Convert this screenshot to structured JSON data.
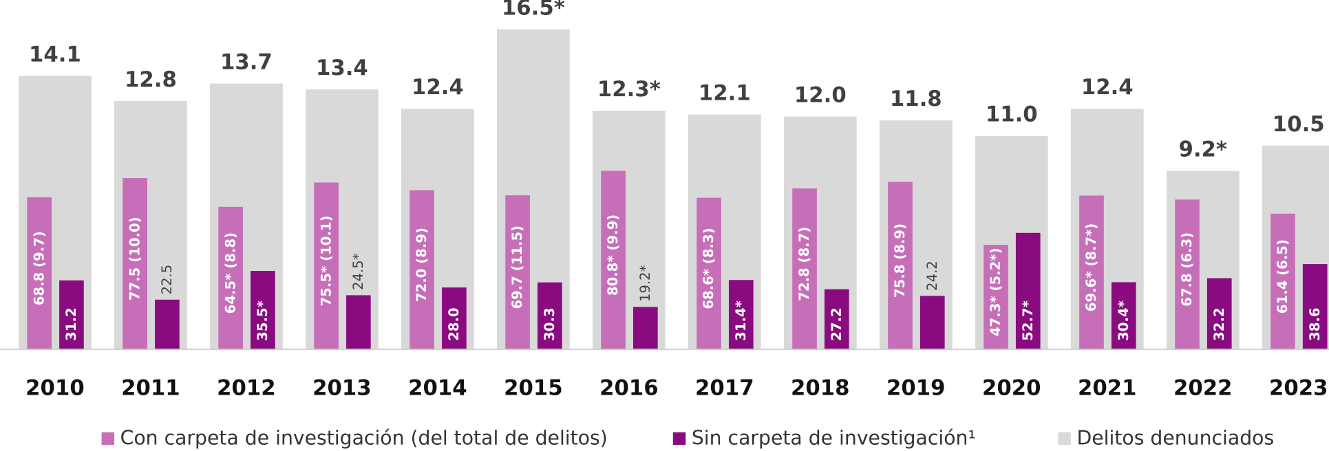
{
  "chart_data": {
    "type": "bar",
    "categories": [
      "2010",
      "2011",
      "2012",
      "2013",
      "2014",
      "2015",
      "2016",
      "2017",
      "2018",
      "2019",
      "2020",
      "2021",
      "2022",
      "2023"
    ],
    "ylim": [
      0,
      18
    ],
    "y2lim": [
      0,
      158
    ],
    "series": [
      {
        "name": "Delitos denunciados",
        "color": "#d9d9d9",
        "values": [
          14.1,
          12.8,
          13.7,
          13.4,
          12.4,
          16.5,
          12.3,
          12.1,
          12.0,
          11.8,
          11.0,
          12.4,
          9.2,
          10.5
        ],
        "value_labels": [
          "14.1",
          "12.8",
          "13.7",
          "13.4",
          "12.4",
          "16.5*",
          "12.3*",
          "12.1",
          "12.0",
          "11.8",
          "11.0",
          "12.4",
          "9.2*",
          "10.5"
        ]
      },
      {
        "name": "Con carpeta de investigación (del total de delitos)",
        "color": "#c66fb8",
        "axis": "y2",
        "values": [
          68.8,
          77.5,
          64.5,
          75.5,
          72.0,
          69.7,
          80.8,
          68.6,
          72.8,
          75.8,
          47.3,
          69.6,
          67.8,
          61.4
        ],
        "value_labels": [
          "68.8 (9.7)",
          "77.5 (10.0)",
          "64.5* (8.8)",
          "75.5* (10.1)",
          "72.0 (8.9)",
          "69.7 (11.5)",
          "80.8* (9.9)",
          "68.6* (8.3)",
          "72.8 (8.7)",
          "75.8 (8.9)",
          "47.3* (5.2*)",
          "69.6* (8.7*)",
          "67.8 (6.3)",
          "61.4 (6.5)"
        ]
      },
      {
        "name": "Sin carpeta de investigación¹",
        "color": "#8a0a80",
        "axis": "y2",
        "values": [
          31.2,
          22.5,
          35.5,
          24.5,
          28.0,
          30.3,
          19.2,
          31.4,
          27.2,
          24.2,
          52.7,
          30.4,
          32.2,
          38.6
        ],
        "value_labels": [
          "31.2",
          "22.5",
          "35.5*",
          "24.5*",
          "28.0",
          "30.3",
          "19.2*",
          "31.4*",
          "27.2",
          "24.2",
          "52.7*",
          "30.4*",
          "32.2",
          "38.6"
        ]
      }
    ]
  }
}
